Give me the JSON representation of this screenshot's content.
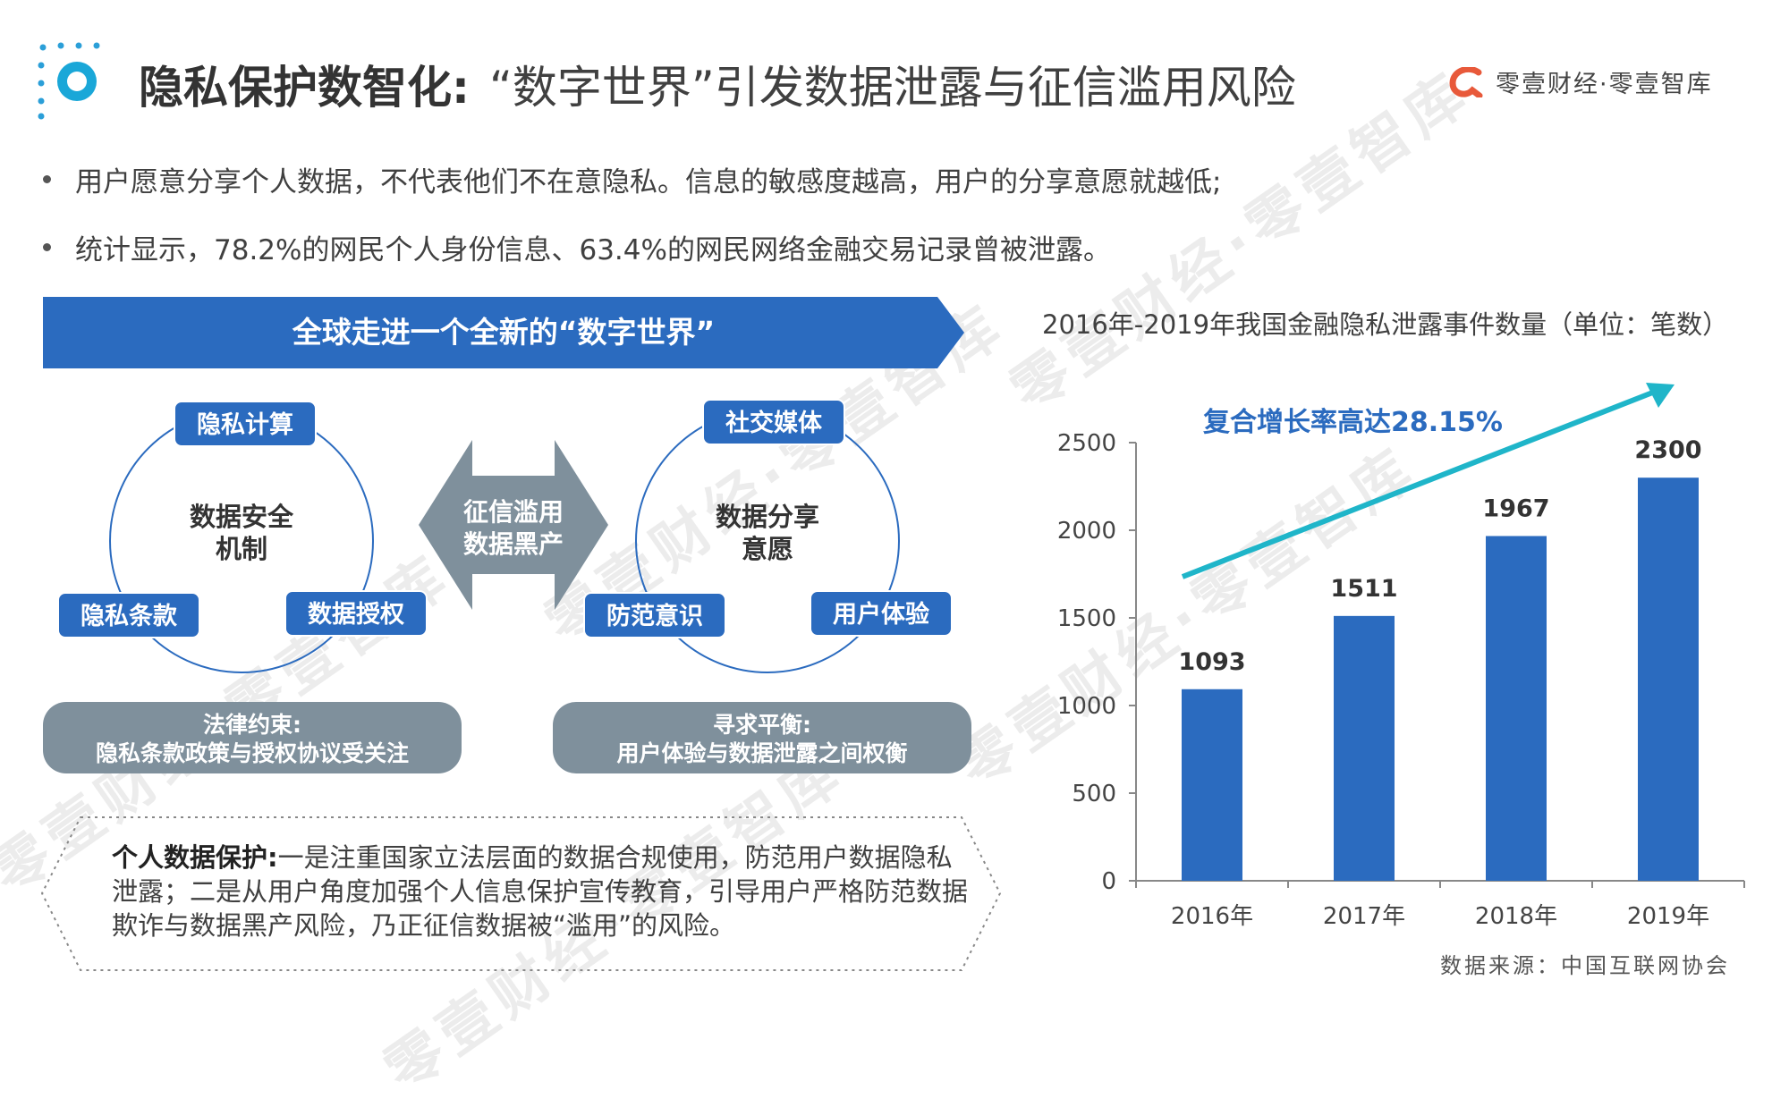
{
  "header": {
    "title_emphasis": "隐私保护数智化:",
    "title_rest": "“数字世界”引发数据泄露与征信滥用风险",
    "brand_text": "零壹财经·零壹智库",
    "brand_color": "#e8593a",
    "accent_color": "#2b6bbf"
  },
  "bullets": [
    "用户愿意分享个人数据，不代表他们不在意隐私。信息的敏感度越高，用户的分享意愿就越低;",
    "统计显示，78.2%的网民个人身份信息、63.4%的网民网络金融交易记录曾被泄露。"
  ],
  "banner": {
    "text": "全球走进一个全新的“数字世界”"
  },
  "left_circle": {
    "center_label_line1": "数据安全",
    "center_label_line2": "机制",
    "top_pill": "隐私计算",
    "left_pill": "隐私条款",
    "right_pill": "数据授权"
  },
  "middle_arrow": {
    "line1": "征信滥用",
    "line2": "数据黑产"
  },
  "right_circle": {
    "center_label_line1": "数据分享",
    "center_label_line2": "意愿",
    "top_pill": "社交媒体",
    "left_pill": "防范意识",
    "right_pill": "用户体验"
  },
  "left_gray_box": {
    "line1": "法律约束:",
    "line2": "隐私条款政策与授权协议受关注"
  },
  "right_gray_box": {
    "line1": "寻求平衡:",
    "line2": "用户体验与数据泄露之间权衡"
  },
  "note": {
    "bold_lead": "个人数据保护:",
    "body": "一是注重国家立法层面的数据合规使用，防范用户数据隐私泄露；二是从用户角度加强个人信息保护宣传教育，引导用户严格防范数据欺诈与数据黑产风险，乃正征信数据被“滥用”的风险。"
  },
  "chart_title": "2016年-2019年我国金融隐私泄露事件数量（单位：笔数）",
  "source": "数据来源：中国互联网协会",
  "chart_data": {
    "type": "bar",
    "categories": [
      "2016年",
      "2017年",
      "2018年",
      "2019年"
    ],
    "values": [
      1093,
      1511,
      1967,
      2300
    ],
    "ylim": [
      0,
      2500
    ],
    "yticks": [
      0,
      500,
      1000,
      1500,
      2000,
      2500
    ],
    "bar_color": "#2b6bbf",
    "trend_color": "#1fb5c9",
    "annotation": "复合增长率高达28.15%",
    "grid": false,
    "legend": "none"
  }
}
